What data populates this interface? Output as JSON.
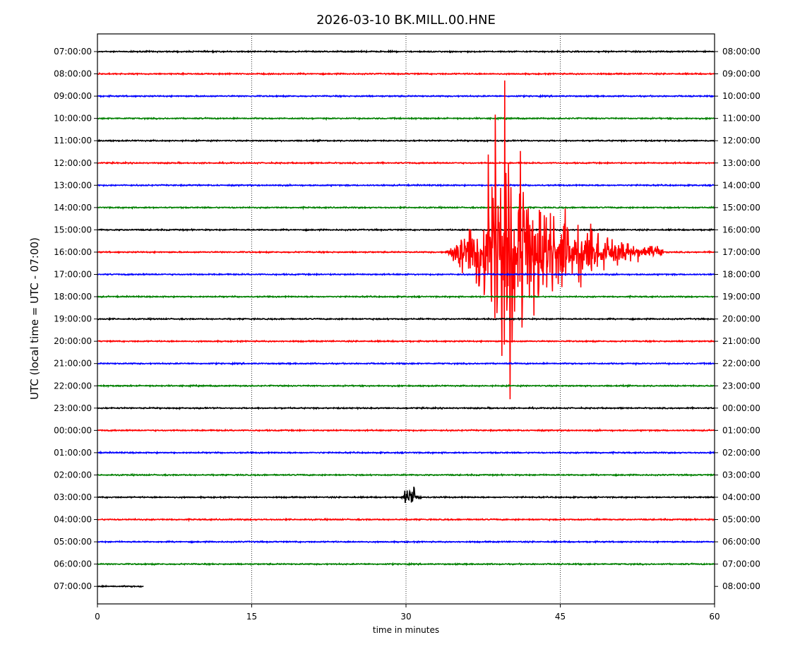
{
  "chart_data": {
    "type": "line",
    "title": "2026-03-10 BK.MILL.00.HNE",
    "xlabel": "time in minutes",
    "ylabel": "UTC (local time = UTC - 07:00)",
    "xlim": [
      0,
      60
    ],
    "x_ticks": [
      0,
      15,
      30,
      45,
      60
    ],
    "x_tick_labels": [
      "0",
      "15",
      "30",
      "45",
      "60"
    ],
    "grid": "vertical dotted lines at 15, 30, 45 minutes",
    "trace_colors": [
      "#000000",
      "#ff0000",
      "#0000ff",
      "#008000"
    ],
    "left_labels": [
      "07:00:00",
      "08:00:00",
      "09:00:00",
      "10:00:00",
      "11:00:00",
      "12:00:00",
      "13:00:00",
      "14:00:00",
      "15:00:00",
      "16:00:00",
      "17:00:00",
      "18:00:00",
      "19:00:00",
      "20:00:00",
      "21:00:00",
      "22:00:00",
      "23:00:00",
      "00:00:00",
      "01:00:00",
      "02:00:00",
      "03:00:00",
      "04:00:00",
      "05:00:00",
      "06:00:00",
      "07:00:00"
    ],
    "right_labels": [
      "08:00:00",
      "09:00:00",
      "10:00:00",
      "11:00:00",
      "12:00:00",
      "13:00:00",
      "14:00:00",
      "15:00:00",
      "16:00:00",
      "17:00:00",
      "18:00:00",
      "19:00:00",
      "20:00:00",
      "21:00:00",
      "22:00:00",
      "23:00:00",
      "00:00:00",
      "01:00:00",
      "02:00:00",
      "03:00:00",
      "04:00:00",
      "05:00:00",
      "06:00:00",
      "07:00:00",
      "08:00:00"
    ],
    "last_trace_end_minutes": 4.5,
    "events": [
      {
        "trace": "16:00:00",
        "start_min": 33.5,
        "peak_min": 39.8,
        "end_min": 55.0,
        "peak_amplitude": 8.0
      },
      {
        "trace": "03:00:00",
        "start_min": 29.5,
        "peak_min": 30.5,
        "end_min": 31.5,
        "peak_amplitude": 1.4
      }
    ]
  }
}
